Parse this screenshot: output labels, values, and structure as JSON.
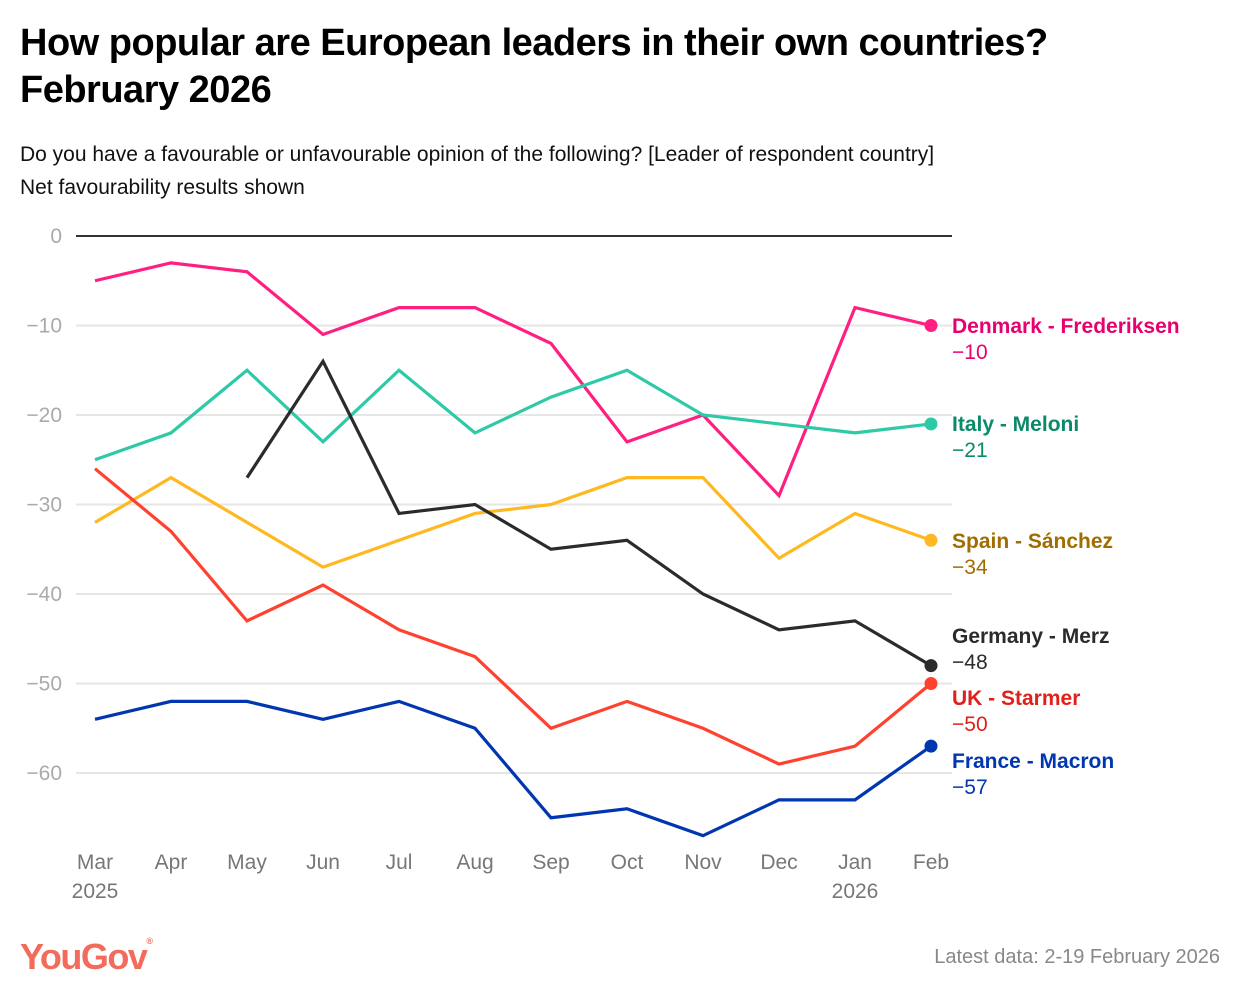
{
  "header": {
    "title": "How popular are European leaders in their own countries? February 2026",
    "subtitle_line1": "Do you have a favourable or unfavourable opinion of the following? [Leader of respondent country]",
    "subtitle_line2": "Net favourability results shown"
  },
  "footer": {
    "logo": "YouGov",
    "logo_mark": "®",
    "note": "Latest data: 2-19 February 2026"
  },
  "chart_data": {
    "type": "line",
    "title": "How popular are European leaders in their own countries? February 2026",
    "xlabel": "",
    "ylabel": "Net favourability",
    "x": [
      "Mar",
      "Apr",
      "May",
      "Jun",
      "Jul",
      "Aug",
      "Sep",
      "Oct",
      "Nov",
      "Dec",
      "Jan",
      "Feb"
    ],
    "x_year_labels": {
      "0": "2025",
      "10": "2026"
    },
    "ylim": [
      -68,
      0
    ],
    "yticks": [
      0,
      -10,
      -20,
      -30,
      -40,
      -50,
      -60
    ],
    "ytick_labels": [
      "0",
      "−10",
      "−20",
      "−30",
      "−40",
      "−50",
      "−60"
    ],
    "grid": true,
    "legend": "direct labels at right",
    "series": [
      {
        "name": "Denmark - Frederiksen",
        "color": "#ff1f80",
        "label_color": "#e8006e",
        "final_label": "−10",
        "values": [
          -5,
          -3,
          -4,
          -11,
          -8,
          -8,
          -12,
          -23,
          -20,
          -29,
          -8,
          -10
        ]
      },
      {
        "name": "Italy - Meloni",
        "color": "#2ec9a7",
        "label_color": "#0b8a6a",
        "final_label": "−21",
        "values": [
          -25,
          -22,
          -15,
          -23,
          -15,
          -22,
          -18,
          -15,
          -20,
          -21,
          -22,
          -21
        ]
      },
      {
        "name": "Spain - Sánchez",
        "color": "#ffb81f",
        "label_color": "#a06d00",
        "final_label": "−34",
        "values": [
          -32,
          -27,
          -32,
          -37,
          -34,
          -31,
          -30,
          -27,
          -27,
          -36,
          -31,
          -34
        ]
      },
      {
        "name": "Germany - Merz",
        "color": "#2b2b2b",
        "label_color": "#2b2b2b",
        "final_label": "−48",
        "values": [
          null,
          null,
          -27,
          -14,
          -31,
          -30,
          -35,
          -34,
          -40,
          -44,
          -43,
          -48
        ]
      },
      {
        "name": "UK - Starmer",
        "color": "#ff4230",
        "label_color": "#e0201a",
        "final_label": "−50",
        "values": [
          -26,
          -33,
          -43,
          -39,
          -44,
          -47,
          -55,
          -52,
          -55,
          -59,
          -57,
          -50
        ]
      },
      {
        "name": "France - Macron",
        "color": "#0037b0",
        "label_color": "#0037b0",
        "final_label": "−57",
        "values": [
          -54,
          -52,
          -52,
          -54,
          -52,
          -55,
          -65,
          -64,
          -67,
          -63,
          -63,
          -57
        ]
      }
    ]
  }
}
